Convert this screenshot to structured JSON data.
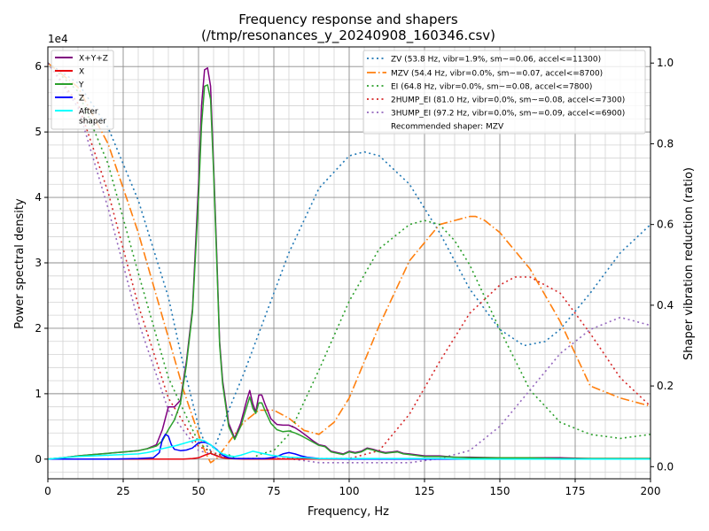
{
  "chart_data": {
    "type": "line",
    "title": "Frequency response and shapers",
    "subtitle": "(/tmp/resonances_y_20240908_160346.csv)",
    "xlabel": "Frequency, Hz",
    "ylabel_left": "Power spectral density",
    "ylabel_right": "Shaper vibration reduction (ratio)",
    "y_offset_label": "1e4",
    "xlim": [
      0,
      200
    ],
    "ylim_left": [
      -0.3,
      6.3
    ],
    "ylim_right": [
      -0.03,
      1.04
    ],
    "grid": true,
    "x_ticks": [
      "0",
      "25",
      "50",
      "75",
      "100",
      "125",
      "150",
      "175",
      "200"
    ],
    "y_ticks_left": [
      "0",
      "1",
      "2",
      "3",
      "4",
      "5",
      "6"
    ],
    "y_ticks_right": [
      "0.0",
      "0.2",
      "0.4",
      "0.6",
      "0.8",
      "1.0"
    ],
    "legend_left_placement": "top-left",
    "legend_right_placement": "top-right",
    "psd_series": [
      {
        "name": "X+Y+Z",
        "color": "#800080",
        "x": [
          0,
          5,
          10,
          15,
          20,
          25,
          30,
          33,
          36,
          38,
          40,
          42,
          44,
          46,
          48,
          50,
          51,
          52,
          53,
          54,
          55,
          56,
          57,
          58,
          60,
          62,
          64,
          66,
          67,
          68,
          69,
          70,
          71,
          72,
          74,
          76,
          78,
          80,
          82,
          84,
          86,
          88,
          90,
          92,
          94,
          96,
          98,
          100,
          102,
          104,
          106,
          108,
          110,
          112,
          114,
          116,
          118,
          120,
          125,
          130,
          135,
          140,
          150,
          160,
          170,
          180,
          190,
          200
        ],
        "y": [
          0.0,
          0.02,
          0.05,
          0.07,
          0.09,
          0.11,
          0.13,
          0.16,
          0.22,
          0.45,
          0.8,
          0.8,
          0.9,
          1.5,
          2.3,
          4.2,
          5.4,
          5.95,
          5.98,
          5.7,
          4.5,
          3.2,
          1.8,
          1.2,
          0.55,
          0.32,
          0.55,
          0.9,
          1.05,
          0.85,
          0.72,
          0.98,
          0.98,
          0.85,
          0.62,
          0.53,
          0.52,
          0.52,
          0.48,
          0.42,
          0.35,
          0.28,
          0.22,
          0.2,
          0.12,
          0.1,
          0.08,
          0.12,
          0.1,
          0.12,
          0.17,
          0.15,
          0.12,
          0.1,
          0.11,
          0.12,
          0.09,
          0.08,
          0.05,
          0.05,
          0.03,
          0.03,
          0.02,
          0.02,
          0.02,
          0.01,
          0.01,
          0.01
        ]
      },
      {
        "name": "X",
        "color": "#e8000b",
        "x": [
          0,
          10,
          20,
          30,
          40,
          45,
          48,
          50,
          52,
          54,
          56,
          58,
          60,
          65,
          70,
          80,
          100,
          150,
          200
        ],
        "y": [
          0.0,
          0.0,
          0.0,
          0.0,
          0.0,
          0.0,
          0.01,
          0.02,
          0.06,
          0.09,
          0.05,
          0.02,
          0.01,
          0.0,
          0.0,
          0.0,
          0.0,
          0.0,
          0.0
        ]
      },
      {
        "name": "Y",
        "color": "#2ca02c",
        "x": [
          0,
          5,
          10,
          15,
          20,
          25,
          30,
          33,
          36,
          38,
          40,
          42,
          44,
          46,
          48,
          50,
          51,
          52,
          53,
          54,
          55,
          56,
          57,
          58,
          60,
          62,
          64,
          66,
          67,
          68,
          69,
          70,
          71,
          72,
          74,
          76,
          78,
          80,
          82,
          84,
          86,
          88,
          90,
          92,
          94,
          96,
          98,
          100,
          102,
          104,
          106,
          108,
          110,
          112,
          114,
          116,
          118,
          120,
          125,
          130,
          135,
          140,
          150,
          160,
          170,
          180,
          190,
          200
        ],
        "y": [
          0.0,
          0.02,
          0.05,
          0.07,
          0.09,
          0.11,
          0.13,
          0.16,
          0.2,
          0.28,
          0.45,
          0.6,
          0.85,
          1.45,
          2.25,
          4.0,
          5.1,
          5.7,
          5.72,
          5.5,
          4.4,
          3.1,
          1.75,
          1.15,
          0.5,
          0.3,
          0.5,
          0.8,
          0.95,
          0.78,
          0.7,
          0.86,
          0.86,
          0.75,
          0.55,
          0.45,
          0.42,
          0.43,
          0.4,
          0.36,
          0.31,
          0.26,
          0.21,
          0.19,
          0.11,
          0.09,
          0.07,
          0.11,
          0.09,
          0.11,
          0.16,
          0.14,
          0.11,
          0.09,
          0.1,
          0.11,
          0.08,
          0.07,
          0.04,
          0.04,
          0.03,
          0.02,
          0.02,
          0.02,
          0.01,
          0.01,
          0.01,
          0.01
        ]
      },
      {
        "name": "Z",
        "color": "#0000ff",
        "x": [
          0,
          10,
          20,
          30,
          35,
          37,
          38,
          39,
          40,
          41,
          42,
          44,
          46,
          48,
          50,
          52,
          54,
          56,
          58,
          60,
          62,
          64,
          66,
          68,
          70,
          72,
          74,
          76,
          78,
          80,
          82,
          84,
          86,
          90,
          100,
          120,
          150,
          200
        ],
        "y": [
          0.0,
          0.0,
          0.0,
          0.01,
          0.02,
          0.1,
          0.3,
          0.38,
          0.35,
          0.22,
          0.15,
          0.13,
          0.14,
          0.17,
          0.25,
          0.26,
          0.22,
          0.15,
          0.06,
          0.02,
          0.01,
          0.01,
          0.01,
          0.01,
          0.01,
          0.01,
          0.02,
          0.04,
          0.08,
          0.1,
          0.08,
          0.05,
          0.03,
          0.01,
          0.0,
          0.0,
          0.0,
          0.0
        ]
      },
      {
        "name": "After\nshaper",
        "color": "#00ffff",
        "x": [
          0,
          5,
          10,
          15,
          20,
          25,
          30,
          33,
          35,
          37,
          40,
          42,
          45,
          48,
          50,
          52,
          54,
          56,
          58,
          60,
          62,
          64,
          66,
          68,
          70,
          72,
          74,
          76,
          78,
          80,
          85,
          90,
          100,
          110,
          120,
          130,
          140,
          150,
          175,
          200
        ],
        "y": [
          0.0,
          0.02,
          0.04,
          0.05,
          0.06,
          0.07,
          0.08,
          0.1,
          0.12,
          0.15,
          0.18,
          0.2,
          0.24,
          0.28,
          0.3,
          0.28,
          0.22,
          0.14,
          0.08,
          0.05,
          0.04,
          0.06,
          0.09,
          0.12,
          0.1,
          0.08,
          0.06,
          0.05,
          0.04,
          0.03,
          0.02,
          0.01,
          0.01,
          0.01,
          0.01,
          0.01,
          0.0,
          0.0,
          0.0,
          0.0
        ]
      }
    ],
    "shaper_series": [
      {
        "name": "ZV (53.8 Hz, vibr=1.9%, sm~=0.06, accel<=11300)",
        "color": "#1f77b4",
        "dash": "2,3.5",
        "x": [
          0,
          10,
          20,
          30,
          40,
          45,
          50,
          52,
          54,
          56,
          60,
          65,
          70,
          80,
          90,
          100,
          105,
          110,
          120,
          130,
          140,
          150,
          158,
          165,
          170,
          180,
          190,
          200
        ],
        "y": [
          1.0,
          0.95,
          0.84,
          0.66,
          0.42,
          0.25,
          0.1,
          0.06,
          0.04,
          0.06,
          0.14,
          0.23,
          0.33,
          0.53,
          0.69,
          0.77,
          0.78,
          0.77,
          0.7,
          0.58,
          0.44,
          0.34,
          0.3,
          0.31,
          0.34,
          0.43,
          0.53,
          0.6
        ]
      },
      {
        "name": "MZV (54.4 Hz, vibr=0.0%, sm~=0.07, accel<=8700)",
        "color": "#ff7f0e",
        "dash": "10,3,1.5,3",
        "x": [
          0,
          10,
          20,
          30,
          40,
          45,
          50,
          52,
          54,
          56,
          60,
          65,
          70,
          75,
          80,
          85,
          90,
          95,
          100,
          110,
          120,
          130,
          140,
          142,
          145,
          150,
          160,
          170,
          180,
          190,
          200
        ],
        "y": [
          1.0,
          0.94,
          0.8,
          0.58,
          0.32,
          0.19,
          0.08,
          0.04,
          0.01,
          0.02,
          0.06,
          0.11,
          0.14,
          0.14,
          0.12,
          0.09,
          0.08,
          0.11,
          0.17,
          0.35,
          0.51,
          0.6,
          0.62,
          0.62,
          0.61,
          0.58,
          0.49,
          0.36,
          0.2,
          0.17,
          0.15
        ]
      },
      {
        "name": "EI (64.8 Hz, vibr=0.0%, sm~=0.08, accel<=7800)",
        "color": "#2ca02c",
        "dash": "2,3.5",
        "x": [
          0,
          10,
          20,
          30,
          40,
          50,
          55,
          60,
          62,
          64,
          66,
          68,
          70,
          75,
          80,
          90,
          100,
          110,
          120,
          125,
          130,
          135,
          140,
          150,
          160,
          170,
          180,
          190,
          200
        ],
        "y": [
          1.0,
          0.93,
          0.75,
          0.48,
          0.22,
          0.06,
          0.03,
          0.03,
          0.02,
          0.02,
          0.02,
          0.02,
          0.03,
          0.04,
          0.08,
          0.24,
          0.41,
          0.54,
          0.6,
          0.61,
          0.6,
          0.56,
          0.5,
          0.34,
          0.19,
          0.11,
          0.08,
          0.07,
          0.08
        ]
      },
      {
        "name": "2HUMP_EI (81.0 Hz, vibr=0.0%, sm~=0.08, accel<=7300)",
        "color": "#d62728",
        "dash": "2,3.5",
        "x": [
          0,
          10,
          20,
          30,
          40,
          50,
          60,
          70,
          80,
          90,
          100,
          110,
          120,
          130,
          140,
          150,
          155,
          160,
          170,
          180,
          190,
          200
        ],
        "y": [
          1.0,
          0.9,
          0.68,
          0.4,
          0.17,
          0.05,
          0.02,
          0.02,
          0.02,
          0.02,
          0.02,
          0.04,
          0.13,
          0.26,
          0.38,
          0.45,
          0.47,
          0.47,
          0.43,
          0.33,
          0.22,
          0.15
        ]
      },
      {
        "name": "3HUMP_EI (97.2 Hz, vibr=0.0%, sm~=0.09, accel<=6900)",
        "color": "#9467bd",
        "dash": "2,3.5",
        "x": [
          0,
          10,
          20,
          30,
          40,
          50,
          60,
          70,
          80,
          90,
          100,
          110,
          120,
          130,
          140,
          150,
          160,
          170,
          180,
          190,
          195,
          200
        ],
        "y": [
          1.0,
          0.89,
          0.64,
          0.36,
          0.14,
          0.04,
          0.02,
          0.02,
          0.02,
          0.01,
          0.01,
          0.01,
          0.01,
          0.02,
          0.04,
          0.1,
          0.19,
          0.28,
          0.34,
          0.37,
          0.36,
          0.35
        ]
      }
    ],
    "recommended_text": "Recommended shaper: MZV"
  }
}
